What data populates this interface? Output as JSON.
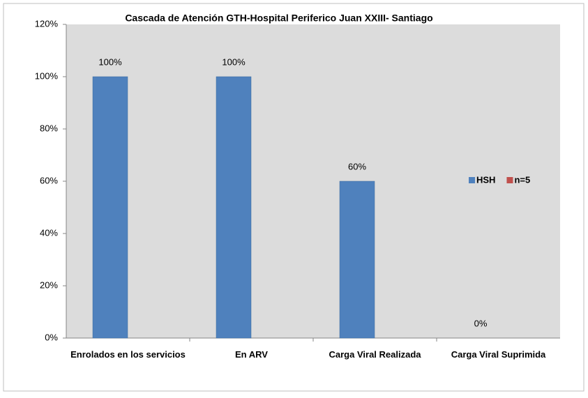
{
  "chart_data": {
    "type": "bar",
    "title": "Cascada de Atención GTH-Hospital Periferico Juan XXIII- Santiago",
    "categories": [
      "Enrolados en los servicios",
      "En ARV",
      "Carga Viral Realizada",
      "Carga Viral Suprimida"
    ],
    "series": [
      {
        "name": "HSH",
        "color": "#4f81bd",
        "values": [
          100,
          100,
          60,
          0
        ],
        "value_labels": [
          "100%",
          "100%",
          "60%",
          "0%"
        ]
      },
      {
        "name": "n=5",
        "color": "#c0504d",
        "values": [
          null,
          null,
          null,
          null
        ]
      }
    ],
    "ylim": [
      0,
      120
    ],
    "yticks": [
      {
        "value": 0,
        "label": "0%"
      },
      {
        "value": 20,
        "label": "20%"
      },
      {
        "value": 40,
        "label": "40%"
      },
      {
        "value": 60,
        "label": "60%"
      },
      {
        "value": 80,
        "label": "80%"
      },
      {
        "value": 100,
        "label": "100%"
      },
      {
        "value": 120,
        "label": "120%"
      }
    ],
    "grid": false,
    "legend": "right"
  }
}
